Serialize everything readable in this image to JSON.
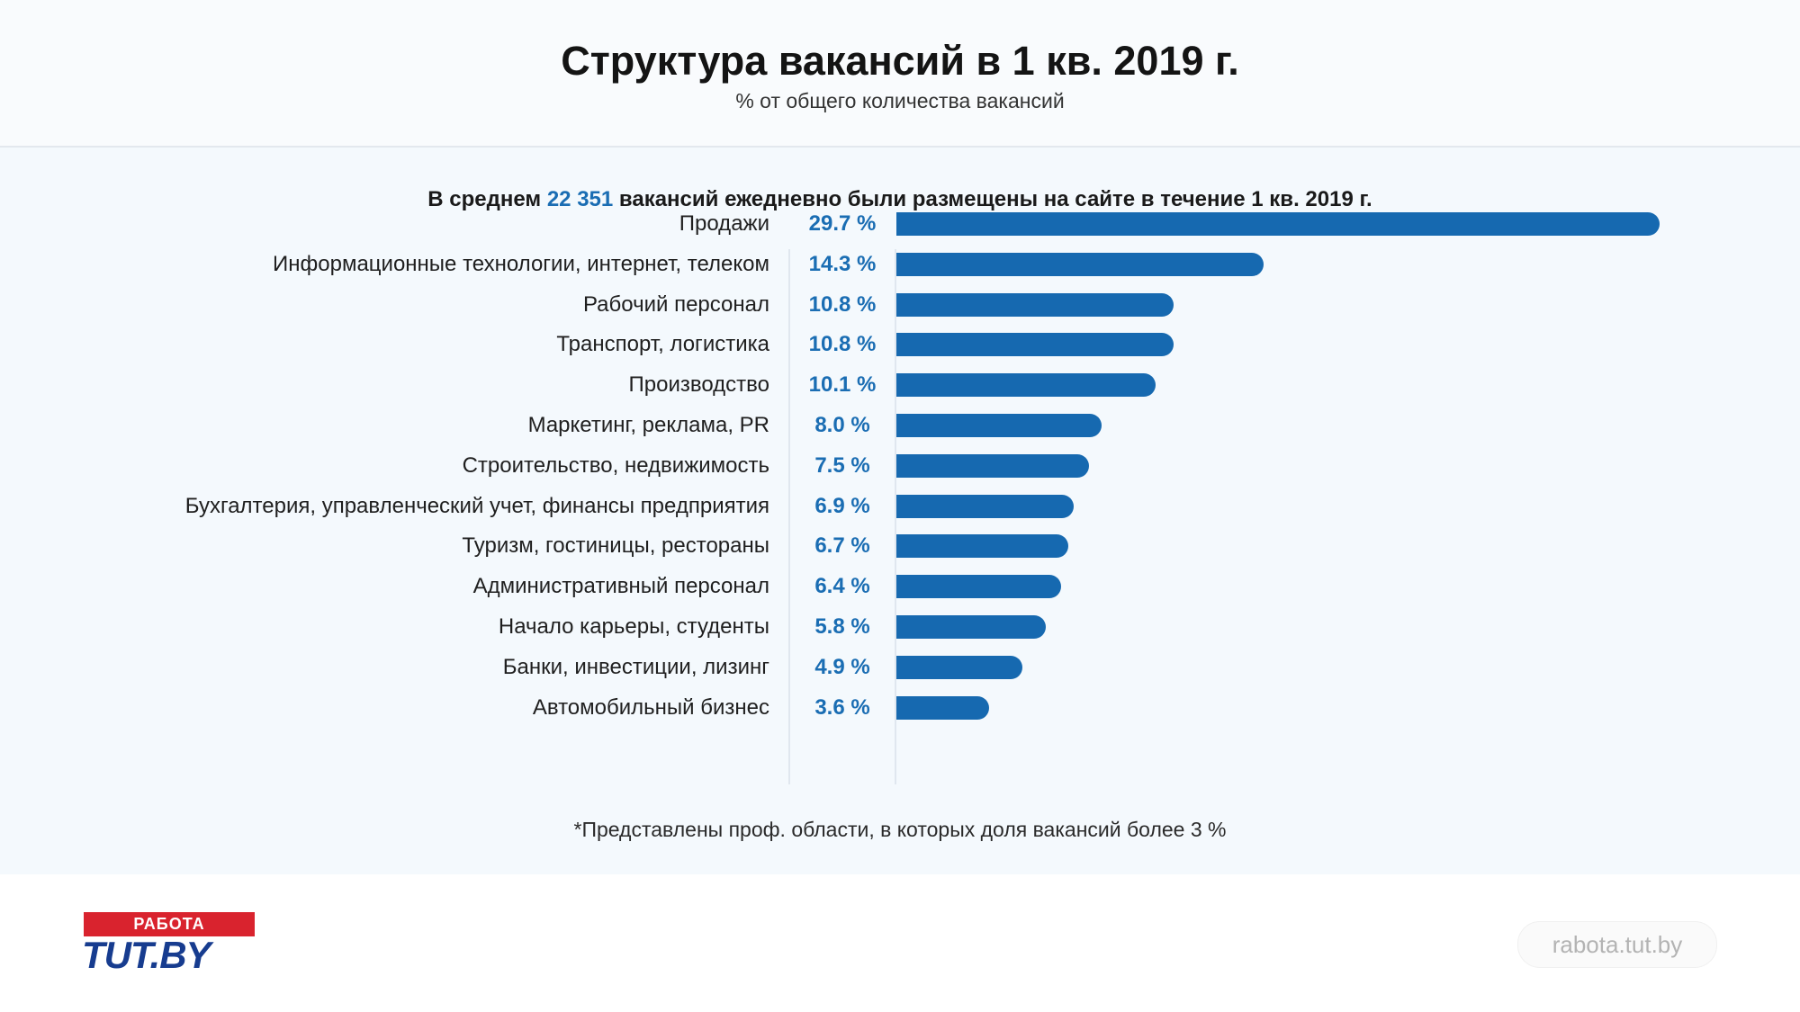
{
  "header": {
    "title": "Структура вакансий в 1 кв. 2019 г.",
    "subtitle": "% от общего количества вакансий"
  },
  "summary": {
    "prefix": "В среднем",
    "highlight": "22 351",
    "suffix": "вакансий ежедневно были размещены на сайте в течение 1 кв. 2019 г."
  },
  "footnote": "*Представлены проф. области, в которых доля вакансий более 3 %",
  "footer": {
    "logo_top": "РАБОТА",
    "logo_bottom": "TUT.BY",
    "site": "rabota.tut.by"
  },
  "colors": {
    "bar": "#1669b0",
    "value_text": "#1a6db3",
    "logo_red": "#d9232e",
    "logo_blue": "#173c8f"
  },
  "chart_data": {
    "type": "bar",
    "orientation": "horizontal",
    "unit": "%",
    "categories": [
      "Продажи",
      "Информационные технологии, интернет, телеком",
      "Рабочий персонал",
      "Транспорт, логистика",
      "Производство",
      "Маркетинг, реклама, PR",
      "Строительство, недвижимость",
      "Бухгалтерия, управленческий учет, финансы предприятия",
      "Туризм, гостиницы, рестораны",
      "Административный персонал",
      "Начало карьеры, студенты",
      "Банки, инвестиции, лизинг",
      "Автомобильный бизнес"
    ],
    "values": [
      29.7,
      14.3,
      10.8,
      10.8,
      10.1,
      8.0,
      7.5,
      6.9,
      6.7,
      6.4,
      5.8,
      4.9,
      3.6
    ],
    "value_labels": [
      "29.7 %",
      "14.3 %",
      "10.8 %",
      "10.8 %",
      "10.1 %",
      "8.0 %",
      "7.5 %",
      "6.9 %",
      "6.7 %",
      "6.4 %",
      "5.8 %",
      "4.9 %",
      "3.6 %"
    ],
    "grid": false,
    "legend": "none"
  }
}
